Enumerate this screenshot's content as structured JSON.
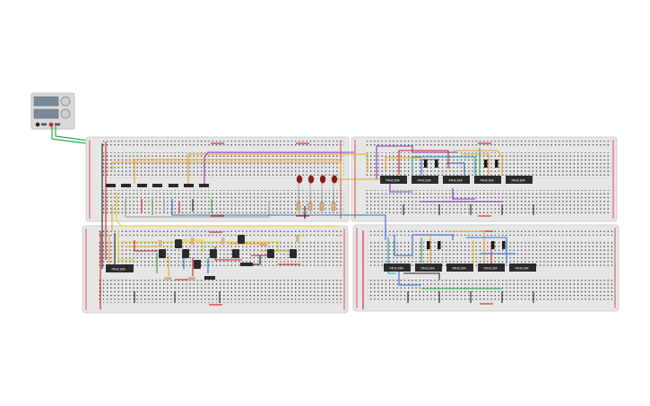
{
  "power_supply": {
    "readout_top": "",
    "readout_bottom": "",
    "terminal_labels": [
      "",
      ""
    ]
  },
  "board_top_left": {
    "chips": [],
    "led_count": 4,
    "resistor_count": 4
  },
  "board_top_right": {
    "chips": [
      "74HC164",
      "74HC164",
      "74HC164",
      "74HC164",
      "74HC164"
    ]
  },
  "board_bottom_left": {
    "chips": [
      "74HC164"
    ],
    "transistor_count": 9
  },
  "board_bottom_right": {
    "chips": [
      "74HC164",
      "74HC164",
      "74HC164",
      "74HC164",
      "74HC164"
    ]
  },
  "colors": {
    "board": "#e6e6e6",
    "board_border": "#d0d0d0",
    "hole": "#3a3a3a",
    "rail_red": "#d62b2b",
    "rail_blue": "#2b2b2b",
    "chip": "#2a2a2a",
    "led": "#8b1a1a",
    "wire_orange": "#f0a020",
    "wire_red": "#d62020",
    "wire_blue": "#2a6fd6",
    "wire_green": "#2ea84a",
    "wire_purple": "#8a3ab5",
    "wire_yellow": "#e8d020",
    "wire_teal": "#1aa0a0",
    "wire_black": "#222222",
    "wire_gray": "#999999"
  }
}
